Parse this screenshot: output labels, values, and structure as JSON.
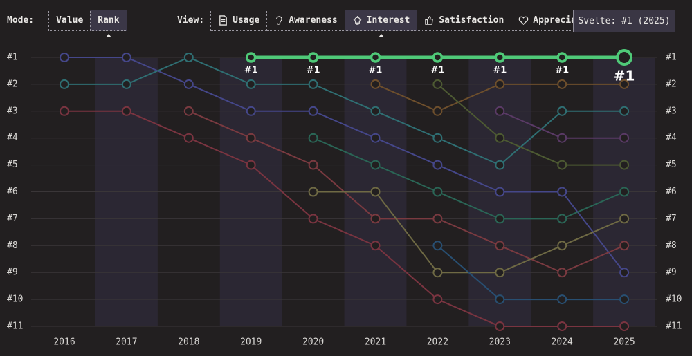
{
  "header": {
    "mode_label": "Mode:",
    "modes": [
      "Value",
      "Rank"
    ],
    "active_mode": 1,
    "view_label": "View:",
    "views": [
      "Usage",
      "Awareness",
      "Interest",
      "Satisfaction",
      "Appreciation"
    ],
    "active_view": 2
  },
  "tooltip": "Svelte: #1 (2025)",
  "chart_data": {
    "type": "line",
    "categories": [
      "2016",
      "2017",
      "2018",
      "2019",
      "2020",
      "2021",
      "2022",
      "2023",
      "2024",
      "2025"
    ],
    "ylim": [
      11,
      1
    ],
    "yticks": [
      {
        "value": 1,
        "label": "#1"
      },
      {
        "value": 2,
        "label": "#2"
      },
      {
        "value": 3,
        "label": "#3"
      },
      {
        "value": 4,
        "label": "#4"
      },
      {
        "value": 5,
        "label": "#5"
      },
      {
        "value": 6,
        "label": "#6"
      },
      {
        "value": 7,
        "label": "#7"
      },
      {
        "value": 8,
        "label": "#8"
      },
      {
        "value": 9,
        "label": "#9"
      },
      {
        "value": 10,
        "label": "#10"
      },
      {
        "value": 11,
        "label": "#11"
      }
    ],
    "grid": true,
    "series": [
      {
        "color": "#45478a",
        "values": [
          1,
          1,
          2,
          3,
          3,
          4,
          5,
          6,
          6,
          9
        ]
      },
      {
        "color": "#2f6f73",
        "values": [
          2,
          2,
          1,
          2,
          2,
          3,
          4,
          5,
          3,
          3
        ]
      },
      {
        "color": "#7a3440",
        "values": [
          3,
          3,
          4,
          5,
          7,
          8,
          10,
          11,
          11,
          11
        ]
      },
      {
        "color": "#7a3a40",
        "values": [
          null,
          null,
          3,
          4,
          5,
          7,
          7,
          8,
          9,
          8
        ]
      },
      {
        "color": "#2a6656",
        "values": [
          null,
          null,
          null,
          null,
          4,
          5,
          6,
          7,
          7,
          6
        ]
      },
      {
        "color": "#6f6a44",
        "values": [
          null,
          null,
          null,
          null,
          6,
          6,
          9,
          9,
          8,
          7
        ]
      },
      {
        "color": "#6e4f2c",
        "values": [
          null,
          null,
          null,
          null,
          null,
          2,
          3,
          2,
          2,
          2
        ]
      },
      {
        "color": "#4d5a32",
        "values": [
          null,
          null,
          null,
          null,
          null,
          null,
          2,
          4,
          5,
          5
        ]
      },
      {
        "color": "#284f72",
        "values": [
          null,
          null,
          null,
          null,
          null,
          null,
          8,
          10,
          10,
          10
        ]
      },
      {
        "color": "#5a3a66",
        "values": [
          null,
          null,
          null,
          null,
          null,
          null,
          null,
          3,
          4,
          4
        ]
      },
      {
        "color": "#4fc978",
        "highlight": true,
        "values": [
          null,
          null,
          null,
          1,
          1,
          1,
          1,
          1,
          1,
          1
        ],
        "value_labels": [
          null,
          null,
          null,
          "#1",
          "#1",
          "#1",
          "#1",
          "#1",
          "#1",
          "#1"
        ]
      }
    ]
  }
}
